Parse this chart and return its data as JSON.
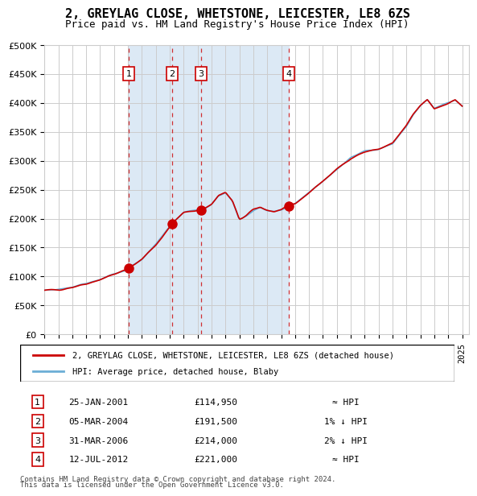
{
  "title": "2, GREYLAG CLOSE, WHETSTONE, LEICESTER, LE8 6ZS",
  "subtitle": "Price paid vs. HM Land Registry's House Price Index (HPI)",
  "legend_line1": "2, GREYLAG CLOSE, WHETSTONE, LEICESTER, LE8 6ZS (detached house)",
  "legend_line2": "HPI: Average price, detached house, Blaby",
  "footer_line1": "Contains HM Land Registry data © Crown copyright and database right 2024.",
  "footer_line2": "This data is licensed under the Open Government Licence v3.0.",
  "transactions": [
    {
      "num": 1,
      "date": "25-JAN-2001",
      "price": 114950,
      "rel": "≈ HPI",
      "year": 2001.07
    },
    {
      "num": 2,
      "date": "05-MAR-2004",
      "price": 191500,
      "rel": "1% ↓ HPI",
      "year": 2004.17
    },
    {
      "num": 3,
      "date": "31-MAR-2006",
      "price": 214000,
      "rel": "2% ↓ HPI",
      "year": 2006.25
    },
    {
      "num": 4,
      "date": "12-JUL-2012",
      "price": 221000,
      "rel": "≈ HPI",
      "year": 2012.53
    }
  ],
  "hpi_line_color": "#6baed6",
  "price_line_color": "#cc0000",
  "dot_color": "#cc0000",
  "shading_color": "#dce9f5",
  "dashed_line_color": "#cc0000",
  "background_color": "#ffffff",
  "grid_color": "#cccccc",
  "ylim": [
    0,
    500000
  ],
  "xlim_start": 1995.0,
  "xlim_end": 2025.5,
  "ylabel_step": 50000
}
